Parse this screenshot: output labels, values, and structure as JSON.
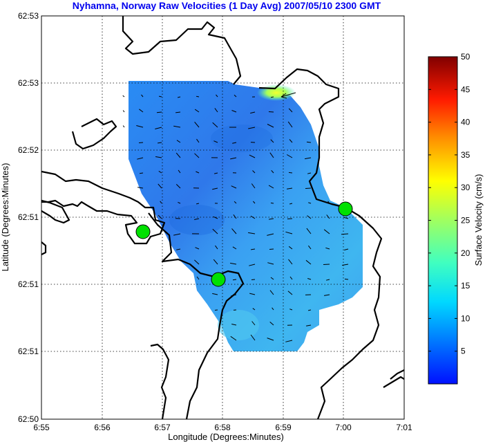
{
  "chart_data": {
    "type": "heatmap",
    "title": "Nyhamna, Norway Raw Velocities (1 Day Avg) 2007/05/10 2300 GMT",
    "xlabel": "Longitude (Degrees:Minutes)",
    "ylabel": "Latitude (Degrees:Minutes)",
    "x_ticks": [
      "6:55",
      "6:56",
      "6:57",
      "6:58",
      "6:59",
      "7:00",
      "7:01"
    ],
    "y_ticks": [
      "62:53",
      "62:53",
      "62:52",
      "62:51",
      "62:51",
      "62:51",
      "62:51",
      "62:50"
    ],
    "grid": true,
    "colorbar": {
      "label": "Surface Velocity (cm/s)",
      "ticks": [
        5,
        10,
        15,
        20,
        25,
        30,
        35,
        40,
        45,
        50
      ],
      "range": [
        0,
        50
      ],
      "colormap": "jet"
    },
    "stations": [
      {
        "lon_min": 56.68,
        "lat": "62:51"
      },
      {
        "lon_min": 57.92,
        "lat": "62:51"
      },
      {
        "lon_min": 60.0,
        "lat": "62:51"
      }
    ],
    "max_speed_cm_s": 25,
    "max_speed_location": "northeast edge near 6:59 / 62:53",
    "typical_speed_cm_s": 6,
    "colors": {
      "title": "#0000ee",
      "station": "#00e000",
      "land_line": "#000000"
    }
  }
}
